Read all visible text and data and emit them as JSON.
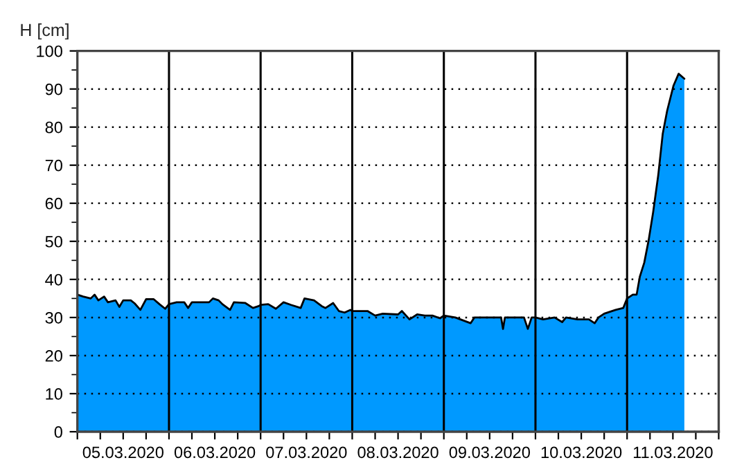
{
  "chart_data": {
    "type": "area",
    "ylabel": "H [cm]",
    "x": [
      "2020-03-05T00:00",
      "2020-03-05T01:30",
      "2020-03-05T03:30",
      "2020-03-05T04:30",
      "2020-03-05T05:30",
      "2020-03-05T07:00",
      "2020-03-05T08:00",
      "2020-03-05T10:00",
      "2020-03-05T11:00",
      "2020-03-05T12:00",
      "2020-03-05T14:00",
      "2020-03-05T15:00",
      "2020-03-05T16:30",
      "2020-03-05T18:00",
      "2020-03-05T20:00",
      "2020-03-05T21:30",
      "2020-03-05T23:00",
      "2020-03-06T00:00",
      "2020-03-06T02:00",
      "2020-03-06T04:00",
      "2020-03-06T05:00",
      "2020-03-06T06:00",
      "2020-03-06T10:30",
      "2020-03-06T11:30",
      "2020-03-06T13:00",
      "2020-03-06T14:00",
      "2020-03-06T16:00",
      "2020-03-06T17:00",
      "2020-03-06T20:00",
      "2020-03-06T22:00",
      "2020-03-06T23:30",
      "2020-03-07T00:00",
      "2020-03-07T02:00",
      "2020-03-07T04:00",
      "2020-03-07T06:00",
      "2020-03-07T08:00",
      "2020-03-07T10:30",
      "2020-03-07T11:30",
      "2020-03-07T14:00",
      "2020-03-07T16:00",
      "2020-03-07T17:00",
      "2020-03-07T19:00",
      "2020-03-07T20:30",
      "2020-03-07T22:00",
      "2020-03-07T23:30",
      "2020-03-08T00:00",
      "2020-03-08T04:00",
      "2020-03-08T06:00",
      "2020-03-08T08:00",
      "2020-03-08T12:00",
      "2020-03-08T13:00",
      "2020-03-08T15:00",
      "2020-03-08T17:00",
      "2020-03-08T19:00",
      "2020-03-08T21:00",
      "2020-03-08T23:00",
      "2020-03-09T00:00",
      "2020-03-09T03:00",
      "2020-03-09T07:00",
      "2020-03-09T08:00",
      "2020-03-09T15:00",
      "2020-03-09T15:30",
      "2020-03-09T16:00",
      "2020-03-09T21:00",
      "2020-03-09T22:00",
      "2020-03-09T23:00",
      "2020-03-10T00:00",
      "2020-03-10T02:00",
      "2020-03-10T05:00",
      "2020-03-10T07:00",
      "2020-03-10T08:00",
      "2020-03-10T11:00",
      "2020-03-10T14:00",
      "2020-03-10T15:30",
      "2020-03-10T16:30",
      "2020-03-10T18:00",
      "2020-03-10T21:00",
      "2020-03-10T23:00",
      "2020-03-11T00:00",
      "2020-03-11T01:30",
      "2020-03-11T02:30",
      "2020-03-11T03:20",
      "2020-03-11T04:30",
      "2020-03-11T05:40",
      "2020-03-11T06:50",
      "2020-03-11T08:10",
      "2020-03-11T09:20",
      "2020-03-11T10:30",
      "2020-03-11T12:10",
      "2020-03-11T13:30",
      "2020-03-11T15:00"
    ],
    "series": [
      {
        "color": "#0099ff",
        "values": [
          36,
          35.5,
          35,
          36,
          34.5,
          35.5,
          34,
          34.5,
          32.8,
          34.5,
          34.5,
          33.7,
          32,
          34.8,
          34.8,
          33.5,
          32.3,
          33.5,
          34,
          34,
          32.5,
          34,
          34,
          35,
          34.5,
          33.5,
          32,
          34,
          33.8,
          32.5,
          33,
          33.3,
          33.5,
          32.3,
          34,
          33.3,
          32.5,
          35,
          34.5,
          33,
          32.5,
          33.8,
          31.7,
          31.3,
          32,
          31.7,
          31.7,
          30.5,
          31,
          30.8,
          31.7,
          29.5,
          30.8,
          30.5,
          30.5,
          29.8,
          30.5,
          30,
          28.5,
          30,
          30,
          27,
          30,
          30,
          27,
          30,
          30,
          29.5,
          30,
          28.8,
          30,
          29.5,
          29.5,
          28.5,
          30,
          31,
          32,
          32.5,
          35,
          36,
          36,
          40.7,
          44.4,
          50.4,
          57.7,
          67.4,
          78.2,
          84.3,
          90.9,
          94,
          92.7
        ]
      }
    ],
    "xlim": [
      "2020-03-05T00:00",
      "2020-03-12T00:00"
    ],
    "xticks": [
      {
        "value": "2020-03-05T00:00",
        "label": null
      },
      {
        "value": "2020-03-05T06:00",
        "label": null
      },
      {
        "value": "2020-03-05T12:00",
        "label": "05.03.2020"
      },
      {
        "value": "2020-03-05T18:00",
        "label": null
      },
      {
        "value": "2020-03-06T00:00",
        "label": null
      },
      {
        "value": "2020-03-06T06:00",
        "label": null
      },
      {
        "value": "2020-03-06T12:00",
        "label": "06.03.2020"
      },
      {
        "value": "2020-03-06T18:00",
        "label": null
      },
      {
        "value": "2020-03-07T00:00",
        "label": null
      },
      {
        "value": "2020-03-07T06:00",
        "label": null
      },
      {
        "value": "2020-03-07T12:00",
        "label": "07.03.2020"
      },
      {
        "value": "2020-03-07T18:00",
        "label": null
      },
      {
        "value": "2020-03-08T00:00",
        "label": null
      },
      {
        "value": "2020-03-08T06:00",
        "label": null
      },
      {
        "value": "2020-03-08T12:00",
        "label": "08.03.2020"
      },
      {
        "value": "2020-03-08T18:00",
        "label": null
      },
      {
        "value": "2020-03-09T00:00",
        "label": null
      },
      {
        "value": "2020-03-09T06:00",
        "label": null
      },
      {
        "value": "2020-03-09T12:00",
        "label": "09.03.2020"
      },
      {
        "value": "2020-03-09T18:00",
        "label": null
      },
      {
        "value": "2020-03-10T00:00",
        "label": null
      },
      {
        "value": "2020-03-10T06:00",
        "label": null
      },
      {
        "value": "2020-03-10T12:00",
        "label": "10.03.2020"
      },
      {
        "value": "2020-03-10T18:00",
        "label": null
      },
      {
        "value": "2020-03-11T00:00",
        "label": null
      },
      {
        "value": "2020-03-11T06:00",
        "label": null
      },
      {
        "value": "2020-03-11T12:00",
        "label": "11.03.2020"
      },
      {
        "value": "2020-03-11T18:00",
        "label": null
      },
      {
        "value": "2020-03-12T00:00",
        "label": null
      }
    ],
    "ylim": [
      0,
      100
    ],
    "yticks": [
      0,
      10,
      20,
      30,
      40,
      50,
      60,
      70,
      80,
      90,
      100
    ],
    "grid": "y",
    "legend": false,
    "ref_lines": [
      {
        "axis": "x",
        "value": "2020-03-06T00:00",
        "color": "#000000",
        "line_style": "solid"
      },
      {
        "axis": "x",
        "value": "2020-03-07T00:00",
        "color": "#000000",
        "line_style": "solid"
      },
      {
        "axis": "x",
        "value": "2020-03-08T00:00",
        "color": "#000000",
        "line_style": "solid"
      },
      {
        "axis": "x",
        "value": "2020-03-09T00:00",
        "color": "#000000",
        "line_style": "solid"
      },
      {
        "axis": "x",
        "value": "2020-03-10T00:00",
        "color": "#000000",
        "line_style": "solid"
      },
      {
        "axis": "x",
        "value": "2020-03-11T00:00",
        "color": "#000000",
        "line_style": "solid"
      }
    ]
  }
}
